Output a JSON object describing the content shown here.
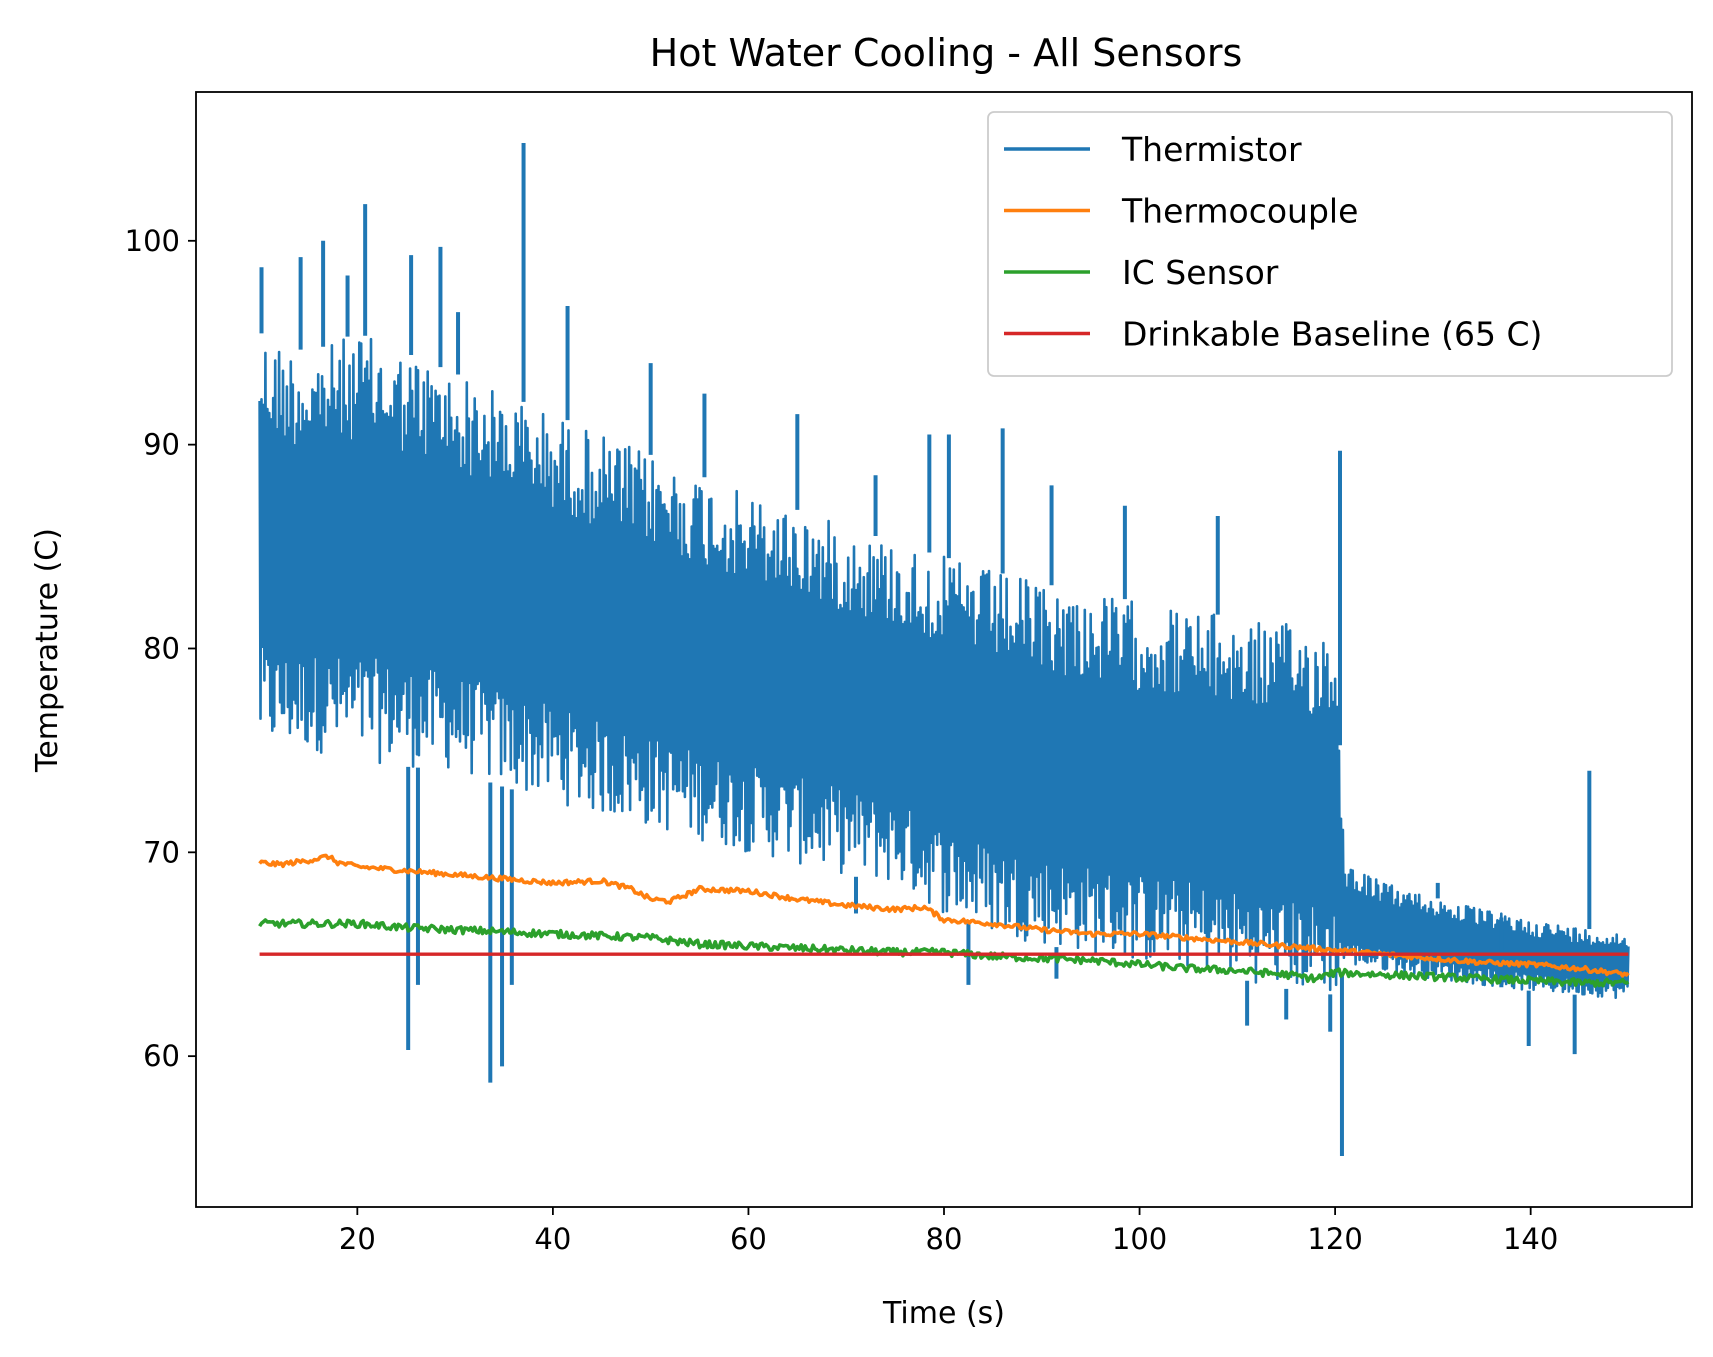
{
  "chart_data": {
    "type": "line",
    "title": "Hot Water Cooling - All Sensors",
    "xlabel": "Time (s)",
    "ylabel": "Temperature (C)",
    "xlim": [
      3.5,
      156.5
    ],
    "ylim": [
      52.6,
      107.3
    ],
    "xticks": [
      20,
      40,
      60,
      80,
      100,
      120,
      140
    ],
    "yticks": [
      60,
      70,
      80,
      90,
      100
    ],
    "grid": false,
    "legend_position": "top-right",
    "series": [
      {
        "name": "Thermistor",
        "color": "#1f77b4",
        "style": "noisy-band",
        "x": [
          10,
          15,
          20,
          25,
          30,
          35,
          40,
          45,
          50,
          55,
          60,
          65,
          70,
          75,
          80,
          85,
          90,
          95,
          100,
          105,
          110,
          115,
          120,
          121,
          125,
          130,
          135,
          140,
          145,
          150
        ],
        "upper": [
          95.5,
          94.5,
          95.5,
          94.5,
          93.5,
          92.5,
          91.5,
          90.5,
          89.5,
          88.5,
          87.5,
          86.8,
          86.0,
          85.2,
          84.5,
          83.8,
          83.2,
          82.7,
          82.3,
          81.9,
          81.5,
          81.2,
          81.0,
          69.5,
          68.5,
          67.8,
          67.2,
          66.7,
          66.3,
          66.0
        ],
        "lower": [
          75.0,
          75.0,
          74.5,
          74.2,
          74.0,
          73.2,
          72.5,
          71.8,
          71.2,
          70.6,
          70.0,
          69.4,
          68.9,
          68.4,
          67.0,
          66.0,
          65.5,
          65.0,
          64.6,
          64.3,
          63.8,
          63.3,
          63.0,
          64.5,
          64.2,
          63.8,
          63.5,
          63.2,
          63.0,
          62.8
        ],
        "spikes": [
          [
            10.2,
            98.7
          ],
          [
            14.2,
            99.2
          ],
          [
            16.5,
            100.0
          ],
          [
            19.0,
            98.3
          ],
          [
            20.8,
            101.8
          ],
          [
            25.5,
            99.3
          ],
          [
            28.5,
            99.7
          ],
          [
            30.3,
            96.5
          ],
          [
            37.0,
            104.8
          ],
          [
            41.5,
            96.8
          ],
          [
            50.0,
            94.0
          ],
          [
            55.5,
            92.5
          ],
          [
            65.0,
            91.5
          ],
          [
            73.0,
            88.5
          ],
          [
            78.5,
            90.5
          ],
          [
            80.5,
            90.5
          ],
          [
            86.0,
            90.8
          ],
          [
            91.0,
            88.0
          ],
          [
            98.5,
            87.0
          ],
          [
            108.0,
            86.5
          ],
          [
            120.5,
            89.7
          ],
          [
            130.5,
            68.5
          ],
          [
            137.0,
            66.8
          ],
          [
            146.0,
            74.0
          ],
          [
            25.2,
            60.3
          ],
          [
            26.2,
            63.5
          ],
          [
            33.6,
            58.7
          ],
          [
            34.8,
            59.5
          ],
          [
            35.8,
            63.5
          ],
          [
            71.0,
            67.0
          ],
          [
            82.5,
            63.5
          ],
          [
            91.5,
            63.8
          ],
          [
            111.0,
            61.5
          ],
          [
            115.0,
            61.8
          ],
          [
            119.5,
            61.2
          ],
          [
            120.7,
            55.1
          ],
          [
            139.8,
            60.5
          ],
          [
            144.5,
            60.1
          ]
        ]
      },
      {
        "name": "Thermocouple",
        "color": "#ff7f0e",
        "x": [
          10,
          12,
          15,
          17,
          18,
          20,
          25,
          30,
          35,
          40,
          45,
          48,
          50,
          52,
          55,
          60,
          65,
          70,
          75,
          78,
          80,
          85,
          90,
          95,
          100,
          105,
          110,
          115,
          120,
          125,
          130,
          135,
          140,
          145,
          150
        ],
        "y": [
          69.5,
          69.4,
          69.6,
          69.8,
          69.5,
          69.3,
          69.1,
          68.9,
          68.7,
          68.5,
          68.6,
          68.2,
          67.7,
          67.6,
          68.2,
          68.1,
          67.7,
          67.4,
          67.2,
          67.3,
          66.7,
          66.5,
          66.2,
          66.0,
          66.0,
          65.8,
          65.6,
          65.4,
          65.2,
          65.0,
          64.8,
          64.6,
          64.5,
          64.3,
          64.0
        ],
        "noise": 0.12
      },
      {
        "name": "IC Sensor",
        "color": "#2ca02c",
        "x": [
          10,
          15,
          20,
          25,
          30,
          35,
          40,
          45,
          50,
          55,
          60,
          65,
          70,
          75,
          80,
          85,
          90,
          95,
          100,
          105,
          110,
          115,
          118,
          120,
          125,
          130,
          135,
          140,
          145,
          150
        ],
        "y": [
          66.5,
          66.5,
          66.5,
          66.3,
          66.2,
          66.1,
          66.0,
          65.9,
          65.8,
          65.5,
          65.4,
          65.3,
          65.2,
          65.1,
          65.1,
          64.9,
          64.8,
          64.7,
          64.5,
          64.3,
          64.2,
          64.0,
          63.8,
          64.1,
          64.0,
          63.9,
          63.8,
          63.7,
          63.6,
          63.6
        ],
        "noise": 0.18
      },
      {
        "name": "Drinkable Baseline (65 C)",
        "color": "#d62728",
        "x": [
          10,
          150
        ],
        "y": [
          65,
          65
        ]
      }
    ]
  }
}
